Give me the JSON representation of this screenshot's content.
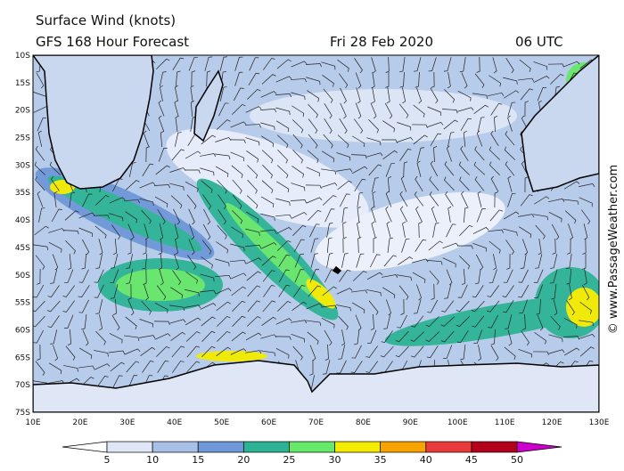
{
  "header": {
    "title": "Surface Wind (knots)",
    "subtitle": "GFS 168 Hour Forecast",
    "date": "Fri 28 Feb 2020",
    "time": "06 UTC"
  },
  "lat_labels": [
    "10S",
    "15S",
    "20S",
    "25S",
    "30S",
    "35S",
    "40S",
    "45S",
    "50S",
    "55S",
    "60S",
    "65S",
    "70S",
    "75S"
  ],
  "lon_labels": [
    "10E",
    "20E",
    "30E",
    "40E",
    "50E",
    "60E",
    "70E",
    "80E",
    "90E",
    "100E",
    "110E",
    "120E",
    "130E"
  ],
  "colorbar": {
    "labels": [
      5,
      10,
      15,
      20,
      25,
      30,
      35,
      40,
      45,
      50
    ],
    "colors": [
      "#ffffff",
      "#dfe7f6",
      "#a9c0e6",
      "#6f98d8",
      "#2db394",
      "#66e86a",
      "#f4ec00",
      "#f7a400",
      "#ea3b3b",
      "#b3001b",
      "#cc00cc"
    ]
  },
  "credit": "© www.PassageWeather.com"
}
